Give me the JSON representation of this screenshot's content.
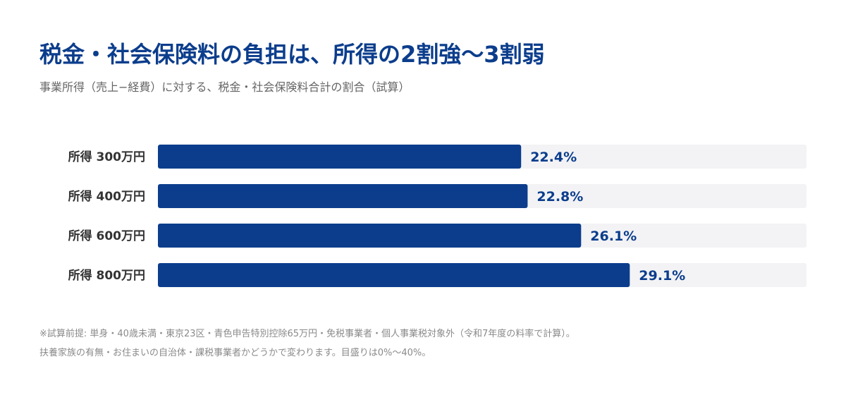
{
  "title": "税金・社会保険料の負担は、所得の2割強〜3割弱",
  "subtitle": "事業所得（売上−経費）に対する、税金・社会保険料合計の割合（試算）",
  "chart_data": {
    "type": "bar",
    "orientation": "horizontal",
    "categories": [
      "所得 300万円",
      "所得 400万円",
      "所得 600万円",
      "所得 800万円"
    ],
    "values": [
      22.4,
      22.8,
      26.1,
      29.1
    ],
    "value_labels": [
      "22.4%",
      "22.8%",
      "26.1%",
      "29.1%"
    ],
    "xlim": [
      0,
      40
    ],
    "unit": "%",
    "grid": false,
    "legend": "none"
  },
  "colors": {
    "title": "#0b3d8c",
    "bar": "#0b3d8c",
    "track": "#f3f3f5",
    "value_label": "#0b3d8c",
    "category_label": "#333333",
    "subtitle": "#666666",
    "footnote": "#8a8a8a"
  },
  "footnotes": [
    "※試算前提: 単身・40歳未満・東京23区・青色申告特別控除65万円・免税事業者・個人事業税対象外（令和7年度の料率で計算）。",
    "扶養家族の有無・お住まいの自治体・課税事業者かどうかで変わります。目盛りは0%〜40%。"
  ]
}
